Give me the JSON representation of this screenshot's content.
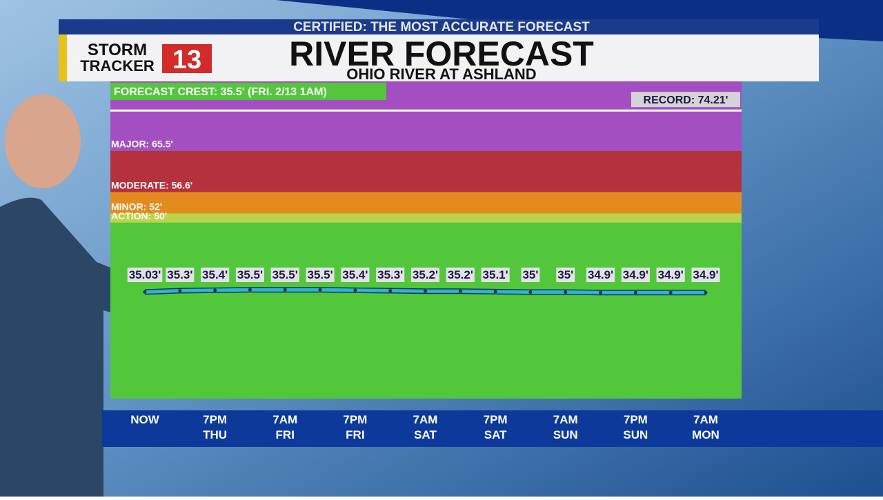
{
  "banner": "CERTIFIED: THE MOST ACCURATE FORECAST",
  "logo": {
    "line1": "STORM",
    "line2": "TRACKER",
    "number": "13"
  },
  "chart_data": {
    "type": "line",
    "title": "RIVER FORECAST",
    "subtitle": "OHIO RIVER AT ASHLAND",
    "crest_annotation": "FORECAST CREST: 35.5' (FRI. 2/13 1AM)",
    "record": {
      "value": 74.21,
      "label": "RECORD: 74.21'"
    },
    "base_color": "#52c73b",
    "stages": [
      {
        "value": 50,
        "label": "ACTION: 50'",
        "color": "#bad54a"
      },
      {
        "value": 52,
        "label": "MINOR: 52'",
        "color": "#e38b1f"
      },
      {
        "value": 56.6,
        "label": "MODERATE: 56.6'",
        "color": "#b4313d"
      },
      {
        "value": 65.5,
        "label": "MAJOR: 65.5'",
        "color": "#a44fc1"
      }
    ],
    "categories": [
      [
        "NOW"
      ],
      null,
      [
        "7PM",
        "THU"
      ],
      null,
      [
        "7AM",
        "FRI"
      ],
      null,
      [
        "7PM",
        "FRI"
      ],
      null,
      [
        "7AM",
        "SAT"
      ],
      null,
      [
        "7PM",
        "SAT"
      ],
      null,
      [
        "7AM",
        "SUN"
      ],
      null,
      [
        "7PM",
        "SUN"
      ],
      null,
      [
        "7AM",
        "MON"
      ]
    ],
    "series": [
      {
        "name": "Ohio River at Ashland",
        "color": "#2fb3d6",
        "values": [
          35.03,
          35.3,
          35.4,
          35.5,
          35.5,
          35.5,
          35.4,
          35.3,
          35.2,
          35.2,
          35.1,
          35,
          35,
          34.9,
          34.9,
          34.9,
          34.9
        ],
        "value_labels": [
          "35.03'",
          "35.3'",
          "35.4'",
          "35.5'",
          "35.5'",
          "35.5'",
          "35.4'",
          "35.3'",
          "35.2'",
          "35.2'",
          "35.1'",
          "35'",
          "35'",
          "34.9'",
          "34.9'",
          "34.9'",
          "34.9'"
        ]
      }
    ],
    "ylim": [
      12,
      80.5
    ]
  }
}
